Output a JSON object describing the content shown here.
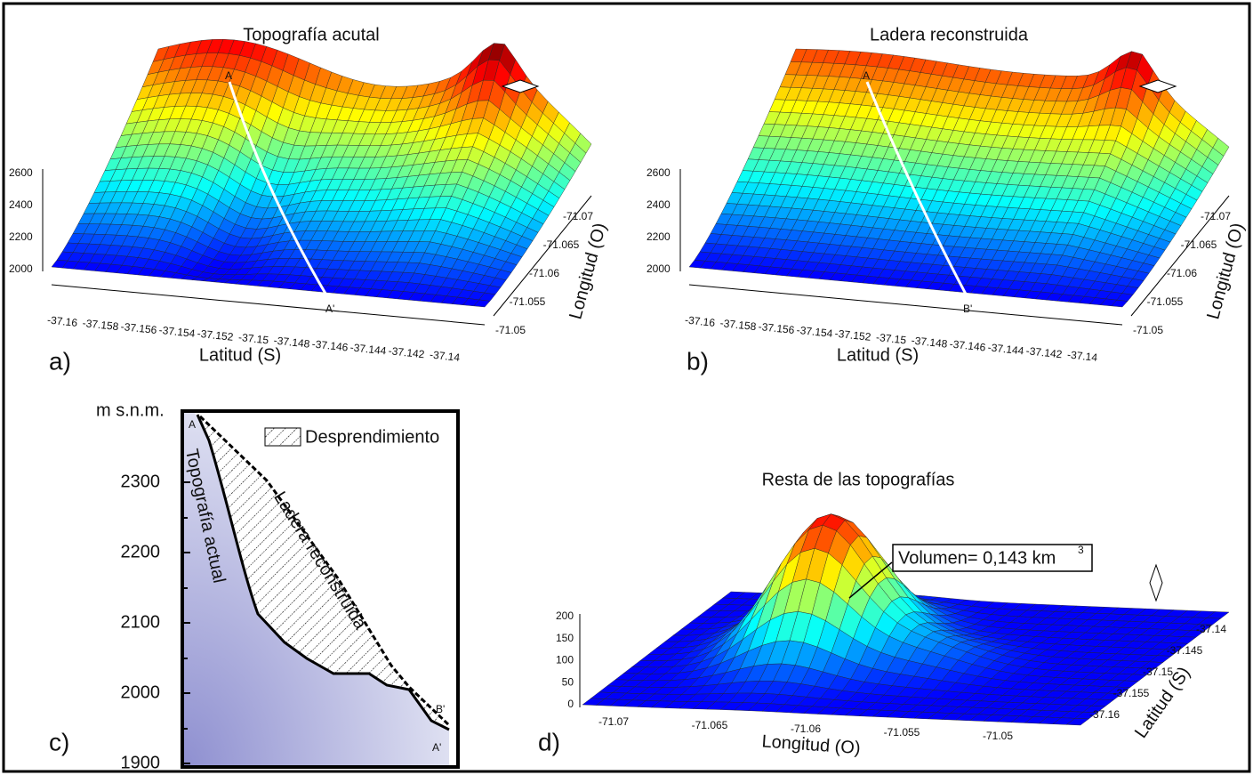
{
  "panels": {
    "a": {
      "label": "a)",
      "title": "Topografía acutal",
      "z_ticks": [
        "2600",
        "2400",
        "2200",
        "2000"
      ],
      "lat_ticks": [
        "-37.16",
        "-37.158",
        "-37.156",
        "-37.154",
        "-37.152",
        "-37.15",
        "-37.148",
        "-37.146",
        "-37.144",
        "-37.142",
        "-37.14"
      ],
      "lon_ticks": [
        "-71.07",
        "-71.065",
        "-71.06",
        "-71.055",
        "-71.05"
      ],
      "x_label": "Latitud (S)",
      "y_label": "Longitud (O)",
      "start": "A",
      "end": "A'"
    },
    "b": {
      "label": "b)",
      "title": "Ladera reconstruida",
      "z_ticks": [
        "2600",
        "2400",
        "2200",
        "2000"
      ],
      "lat_ticks": [
        "-37.16",
        "-37.158",
        "-37.156",
        "-37.154",
        "-37.152",
        "-37.15",
        "-37.148",
        "-37.146",
        "-37.144",
        "-37.142",
        "-37.14"
      ],
      "lon_ticks": [
        "-71.07",
        "-71.065",
        "-71.06",
        "-71.055",
        "-71.05"
      ],
      "x_label": "Latitud (S)",
      "y_label": "Longitud (O)",
      "start": "A",
      "end": "B'"
    },
    "c": {
      "label": "c)",
      "y_unit": "m s.n.m.",
      "y_ticks": [
        "2300",
        "2200",
        "2100",
        "2000",
        "1900"
      ],
      "legend": "Desprendimiento",
      "line_actual": "Topografía actual",
      "line_reconstructed": "Ladera reconstruida",
      "start": "A",
      "end_reconstructed": "B'",
      "end_actual": "A'"
    },
    "d": {
      "label": "d)",
      "title": "Resta de las topografías",
      "volume": "Volumen= 0,143 km",
      "volume_exp": "3",
      "z_ticks": [
        "200",
        "150",
        "100",
        "50",
        "0"
      ],
      "lon_ticks": [
        "-71.07",
        "-71.065",
        "-71.06",
        "-71.055",
        "-71.05"
      ],
      "lat_ticks": [
        "-37.14",
        "-37.145",
        "-37.15",
        "-37.155",
        "-37.16"
      ],
      "x_label": "Longitud (O)",
      "y_label": "Latitud (S)"
    }
  }
}
